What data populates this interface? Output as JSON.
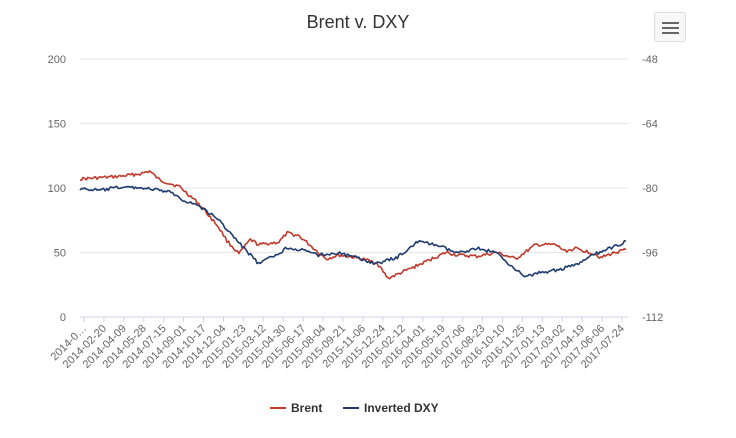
{
  "chart_data": {
    "type": "line",
    "title": "Brent v. DXY",
    "x_tick_labels": [
      "2014-0…",
      "2014-02-20",
      "2014-04-09",
      "2014-05-28",
      "2014-07-15",
      "2014-09-01",
      "2014-10-17",
      "2014-12-04",
      "2015-01-23",
      "2015-03-12",
      "2015-04-30",
      "2015-06-17",
      "2015-08-04",
      "2015-09-21",
      "2015-11-06",
      "2015-12-24",
      "2016-02-12",
      "2016-04-01",
      "2016-05-19",
      "2016-07-06",
      "2016-08-23",
      "2016-10-10",
      "2016-11-25",
      "2017-01-13",
      "2017-03-02",
      "2017-04-19",
      "2017-06-06",
      "2017-07-24"
    ],
    "y_left": {
      "ticks": [
        "0",
        "50",
        "100",
        "150",
        "200"
      ],
      "range": [
        0,
        200
      ]
    },
    "y_right": {
      "ticks": [
        "-112",
        "-96",
        "-80",
        "-64",
        "-48"
      ],
      "range": [
        -112,
        -48
      ]
    },
    "grid": true,
    "legend_position": "bottom",
    "series": [
      {
        "name": "Brent",
        "axis": "left",
        "color": "#c0392b",
        "x": [
          "2014-01-02",
          "2014-02-20",
          "2014-04-09",
          "2014-05-28",
          "2014-06-20",
          "2014-07-15",
          "2014-09-01",
          "2014-10-17",
          "2014-12-04",
          "2014-12-25",
          "2015-01-23",
          "2015-02-20",
          "2015-03-12",
          "2015-04-30",
          "2015-05-20",
          "2015-06-17",
          "2015-07-10",
          "2015-08-04",
          "2015-08-24",
          "2015-09-21",
          "2015-11-06",
          "2015-12-24",
          "2016-01-20",
          "2016-02-12",
          "2016-04-01",
          "2016-05-19",
          "2016-06-10",
          "2016-07-06",
          "2016-08-23",
          "2016-10-10",
          "2016-11-25",
          "2017-01-13",
          "2017-03-02",
          "2017-03-25",
          "2017-04-19",
          "2017-06-06",
          "2017-06-20",
          "2017-07-24",
          "2017-08-20"
        ],
        "values": [
          107,
          108,
          109,
          111,
          113,
          106,
          101,
          88,
          70,
          59,
          49,
          60,
          56,
          58,
          65,
          63,
          57,
          50,
          45,
          48,
          46,
          42,
          30,
          33,
          40,
          47,
          50,
          48,
          47,
          50,
          45,
          56,
          56,
          51,
          53,
          49,
          46,
          50,
          52
        ]
      },
      {
        "name": "Inverted DXY",
        "axis": "right",
        "color": "#1f3b6e",
        "x": [
          "2014-01-02",
          "2014-02-20",
          "2014-04-09",
          "2014-05-28",
          "2014-07-15",
          "2014-08-15",
          "2014-09-01",
          "2014-10-17",
          "2014-12-04",
          "2015-01-23",
          "2015-03-12",
          "2015-04-30",
          "2015-05-20",
          "2015-06-17",
          "2015-08-04",
          "2015-09-21",
          "2015-11-06",
          "2015-12-24",
          "2016-02-12",
          "2016-04-01",
          "2016-05-19",
          "2016-07-06",
          "2016-08-23",
          "2016-10-10",
          "2016-11-25",
          "2016-12-20",
          "2017-01-13",
          "2017-03-02",
          "2017-04-19",
          "2017-06-06",
          "2017-07-24",
          "2017-08-20"
        ],
        "values": [
          -80.2,
          -80.6,
          -79.8,
          -79.9,
          -80.6,
          -81.2,
          -82.6,
          -84.4,
          -87.8,
          -93.6,
          -98.8,
          -96.2,
          -94.8,
          -95.2,
          -96.6,
          -96.1,
          -97.4,
          -98.8,
          -97.2,
          -93.3,
          -94.2,
          -96.2,
          -94.9,
          -96.1,
          -100.2,
          -102.1,
          -101.2,
          -100.4,
          -99.2,
          -96.4,
          -94.5,
          -93.2
        ]
      }
    ]
  },
  "toolbar": {
    "menu_icon": "hamburger-menu-icon"
  }
}
